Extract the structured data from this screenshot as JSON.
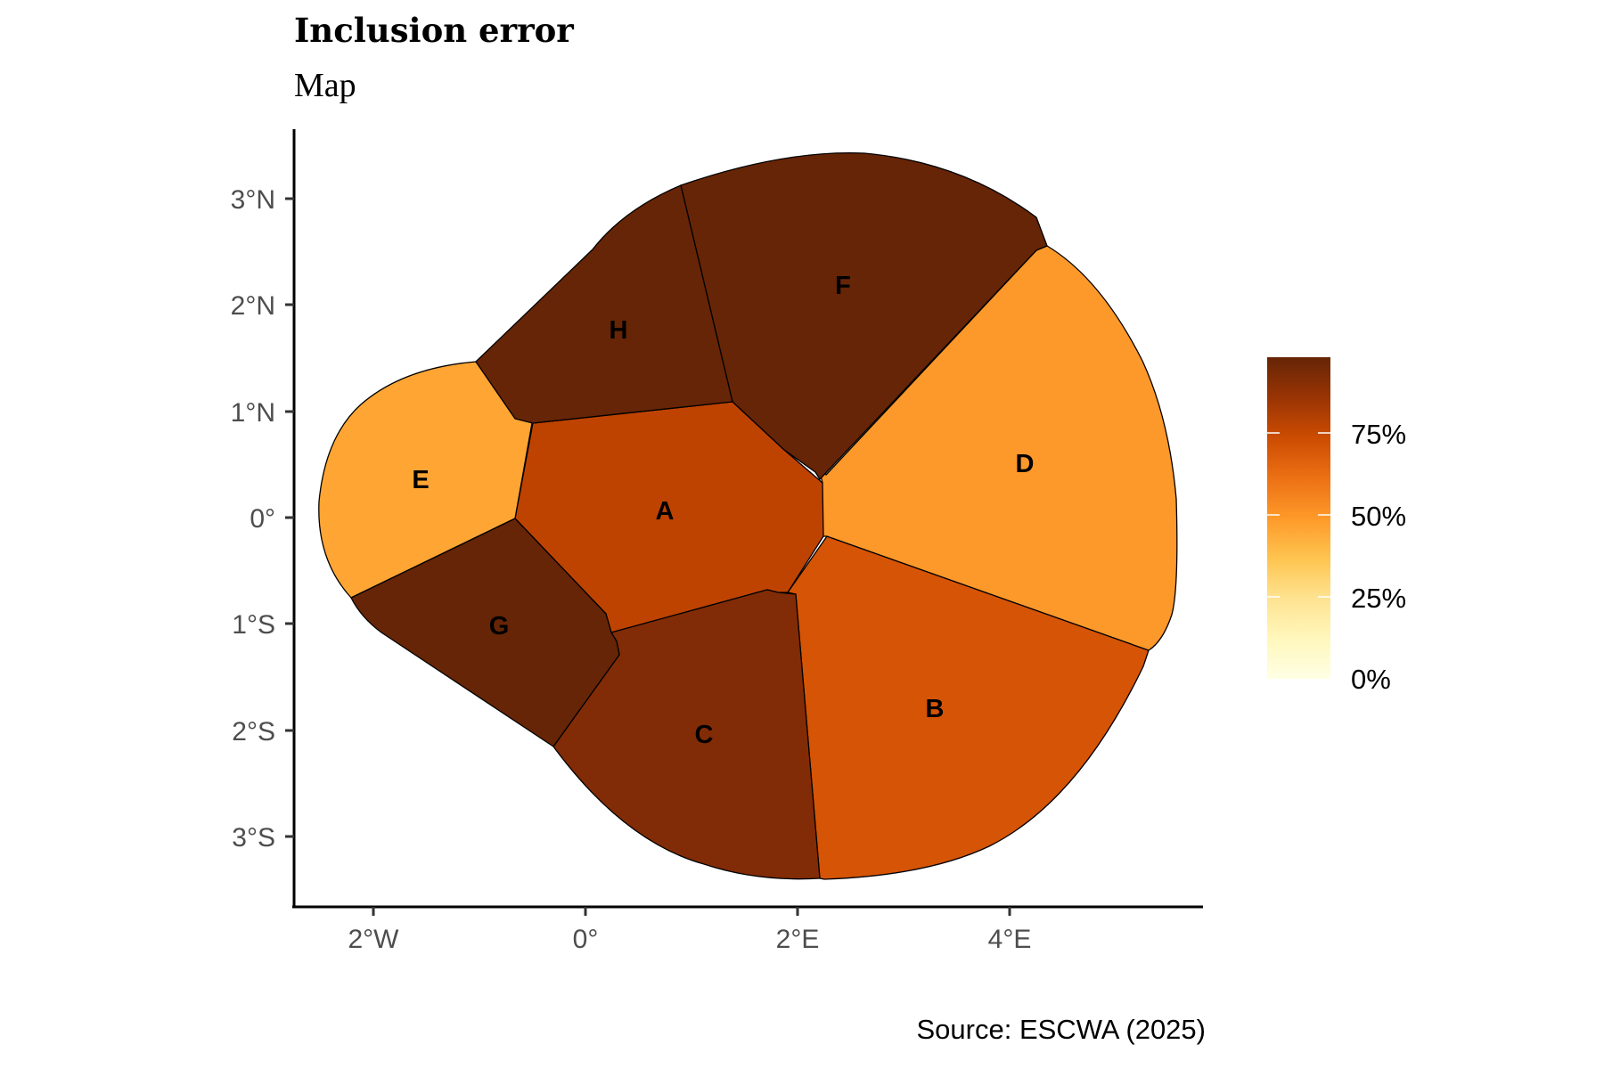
{
  "title": "Inclusion error",
  "subtitle": "Map",
  "caption": "Source: ESCWA (2025)",
  "chart_data": {
    "type": "choropleth",
    "title": "Inclusion error",
    "subtitle": "Map",
    "x_ticks": [
      "2°W",
      "0°",
      "2°E",
      "4°E"
    ],
    "y_ticks": [
      "3°N",
      "2°N",
      "1°N",
      "0°",
      "1°S",
      "2°S",
      "3°S"
    ],
    "regions": [
      {
        "name": "A",
        "value_pct": 82,
        "color": "#bf4300"
      },
      {
        "name": "B",
        "value_pct": 72,
        "color": "#d55405"
      },
      {
        "name": "C",
        "value_pct": 91,
        "color": "#812c06"
      },
      {
        "name": "D",
        "value_pct": 52,
        "color": "#fd982a"
      },
      {
        "name": "E",
        "value_pct": 47,
        "color": "#fea534"
      },
      {
        "name": "F",
        "value_pct": 97,
        "color": "#662506"
      },
      {
        "name": "G",
        "value_pct": 97,
        "color": "#662506"
      },
      {
        "name": "H",
        "value_pct": 97,
        "color": "#662506"
      }
    ],
    "legend": {
      "labels": [
        "75%",
        "50%",
        "25%",
        "0%"
      ],
      "placement": "right",
      "scale": [
        "#ffffe5",
        "#fff7bc",
        "#fee391",
        "#fec44f",
        "#fe9929",
        "#ec7014",
        "#cc4c02",
        "#993404",
        "#662506"
      ]
    },
    "grid": false
  }
}
